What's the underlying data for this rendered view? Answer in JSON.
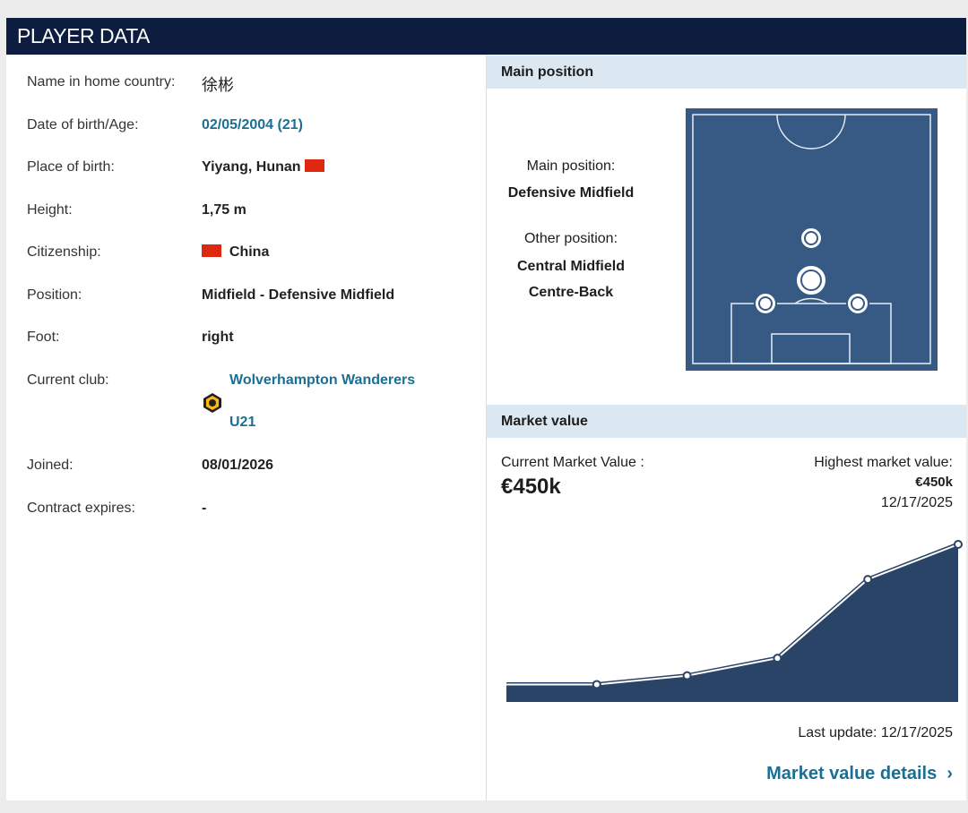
{
  "header": {
    "title": "PLAYER DATA"
  },
  "player_data": {
    "name_label": "Name in home country:",
    "name": "徐彬",
    "dob_label": "Date of birth/Age:",
    "dob": "02/05/2004 (21)",
    "pob_label": "Place of birth:",
    "pob": "Yiyang, Hunan",
    "height_label": "Height:",
    "height": "1,75 m",
    "citizenship_label": "Citizenship:",
    "citizenship": "China",
    "position_label": "Position:",
    "position": "Midfield - Defensive Midfield",
    "foot_label": "Foot:",
    "foot": "right",
    "club_label": "Current club:",
    "club": "Wolverhampton Wanderers",
    "club_team": "U21",
    "joined_label": "Joined:",
    "joined": "08/01/2026",
    "contract_label": "Contract expires:",
    "contract": "-"
  },
  "main_position": {
    "title": "Main position",
    "main_label": "Main position:",
    "main": "Defensive Midfield",
    "other_label": "Other position:",
    "others": [
      "Central Midfield",
      "Centre-Back"
    ]
  },
  "market_value": {
    "title": "Market value",
    "current_label": "Current Market Value :",
    "current": "€450k",
    "highest_label": "Highest market value:",
    "highest": "€450k",
    "highest_date": "12/17/2025",
    "chart": {
      "type": "area",
      "values": [
        50,
        50,
        75,
        125,
        350,
        450
      ]
    },
    "last_update": "Last update: 12/17/2025",
    "details_link": "Market value details"
  }
}
